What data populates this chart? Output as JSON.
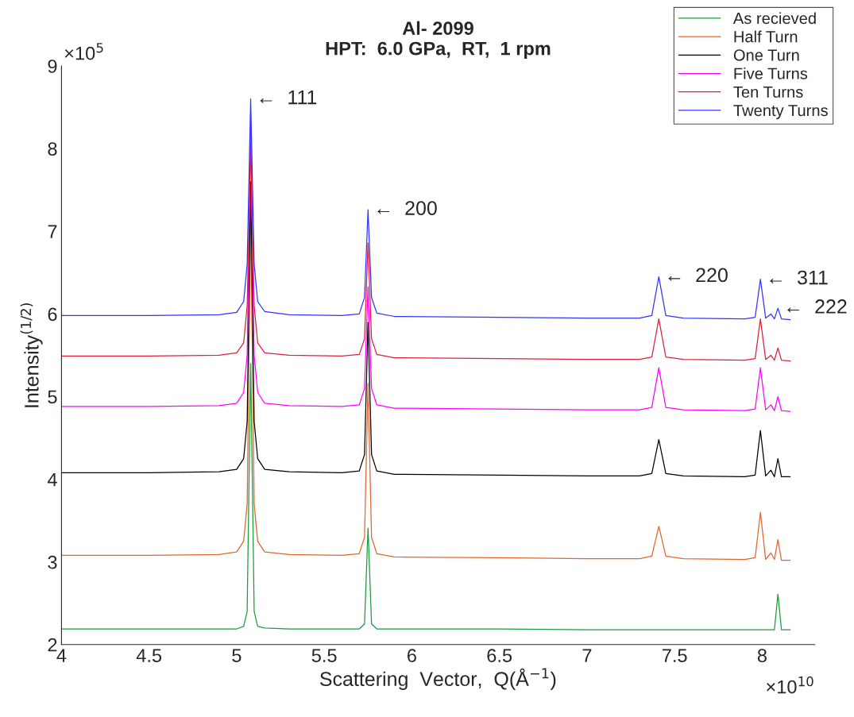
{
  "chart_data": {
    "type": "line",
    "title": "Al- 2099\nHPT:  6.0 GPa,  RT,  1 rpm",
    "xlabel": "Scattering  Vector,  Q(Å$^{−1}$)",
    "ylabel": "Intensity$^{(1/2)}$",
    "x": [
      4.0,
      4.5,
      4.9,
      5.0,
      5.04,
      5.06,
      5.08,
      5.1,
      5.12,
      5.16,
      5.3,
      5.6,
      5.7,
      5.73,
      5.75,
      5.77,
      5.8,
      5.9,
      6.5,
      7.0,
      7.3,
      7.37,
      7.41,
      7.45,
      7.55,
      7.9,
      7.96,
      7.99,
      8.02,
      8.05,
      8.07,
      8.09,
      8.11,
      8.16
    ],
    "series": [
      {
        "name": "As recieved",
        "color": "#1a9c3c",
        "values": [
          2.19,
          2.19,
          2.19,
          2.19,
          2.22,
          2.4,
          5.4,
          2.4,
          2.22,
          2.2,
          2.19,
          2.19,
          2.19,
          2.25,
          3.41,
          2.25,
          2.19,
          2.19,
          2.19,
          2.18,
          2.18,
          2.18,
          2.18,
          2.18,
          2.18,
          2.18,
          2.18,
          2.18,
          2.18,
          2.18,
          2.18,
          2.61,
          2.18,
          2.18
        ]
      },
      {
        "name": "Half Turn",
        "color": "#e0662e",
        "values": [
          3.08,
          3.08,
          3.09,
          3.12,
          3.25,
          3.7,
          7.2,
          3.7,
          3.25,
          3.12,
          3.09,
          3.08,
          3.1,
          3.3,
          5.16,
          3.3,
          3.1,
          3.06,
          3.05,
          3.04,
          3.04,
          3.07,
          3.43,
          3.07,
          3.04,
          3.03,
          3.05,
          3.6,
          3.03,
          3.11,
          3.03,
          3.27,
          3.02,
          3.02
        ]
      },
      {
        "name": "One Turn",
        "color": "#000000",
        "values": [
          4.08,
          4.08,
          4.09,
          4.12,
          4.25,
          4.7,
          7.6,
          4.7,
          4.25,
          4.12,
          4.09,
          4.08,
          4.1,
          4.3,
          5.9,
          4.3,
          4.1,
          4.06,
          4.05,
          4.04,
          4.04,
          4.07,
          4.48,
          4.07,
          4.04,
          4.03,
          4.05,
          4.59,
          4.04,
          4.11,
          4.03,
          4.25,
          4.03,
          4.03
        ]
      },
      {
        "name": "Five Turns",
        "color": "#ff00ff",
        "values": [
          4.88,
          4.88,
          4.89,
          4.92,
          5.05,
          5.5,
          8.3,
          5.5,
          5.05,
          4.92,
          4.89,
          4.88,
          4.9,
          5.1,
          6.33,
          5.1,
          4.9,
          4.86,
          4.85,
          4.84,
          4.84,
          4.87,
          5.35,
          4.87,
          4.84,
          4.83,
          4.85,
          5.35,
          4.84,
          4.9,
          4.83,
          5.0,
          4.83,
          4.82
        ]
      },
      {
        "name": "Ten Turns",
        "color": "#e0203a",
        "values": [
          5.49,
          5.49,
          5.5,
          5.53,
          5.65,
          6.1,
          8.05,
          6.1,
          5.65,
          5.53,
          5.5,
          5.49,
          5.51,
          5.7,
          6.86,
          5.7,
          5.51,
          5.47,
          5.46,
          5.45,
          5.45,
          5.48,
          5.94,
          5.48,
          5.45,
          5.44,
          5.46,
          5.94,
          5.45,
          5.5,
          5.44,
          5.59,
          5.44,
          5.43
        ]
      },
      {
        "name": "Twenty Turns",
        "color": "#3333ff",
        "values": [
          5.98,
          5.98,
          5.99,
          6.02,
          6.15,
          6.6,
          8.6,
          6.6,
          6.15,
          6.03,
          5.99,
          5.98,
          6.0,
          6.2,
          7.26,
          6.2,
          6.01,
          5.97,
          5.96,
          5.95,
          5.95,
          5.98,
          6.45,
          5.98,
          5.95,
          5.94,
          5.96,
          6.42,
          5.95,
          6.0,
          5.94,
          6.07,
          5.94,
          5.93
        ]
      }
    ],
    "xlim": [
      4,
      8.3
    ],
    "xticks": [
      4,
      4.5,
      5,
      5.5,
      6,
      6.5,
      7,
      7.5,
      8
    ],
    "ylim": [
      2,
      9
    ],
    "yticks": [
      2,
      3,
      4,
      5,
      6,
      7,
      8,
      9
    ],
    "grid": false,
    "legend": "top right",
    "marker": "none",
    "line_style": "solid",
    "annotations": [
      "×10$^{5}$",
      "×10$^{10}$",
      {
        "text": "←  111",
        "x": 5.08,
        "y": 8.6
      },
      {
        "text": "←  200",
        "x": 5.75,
        "y": 7.26
      },
      {
        "text": "←  220",
        "x": 7.41,
        "y": 6.45
      },
      {
        "text": "←  311",
        "x": 7.99,
        "y": 6.42
      },
      {
        "text": "←  222",
        "x": 8.09,
        "y": 6.07
      }
    ]
  }
}
